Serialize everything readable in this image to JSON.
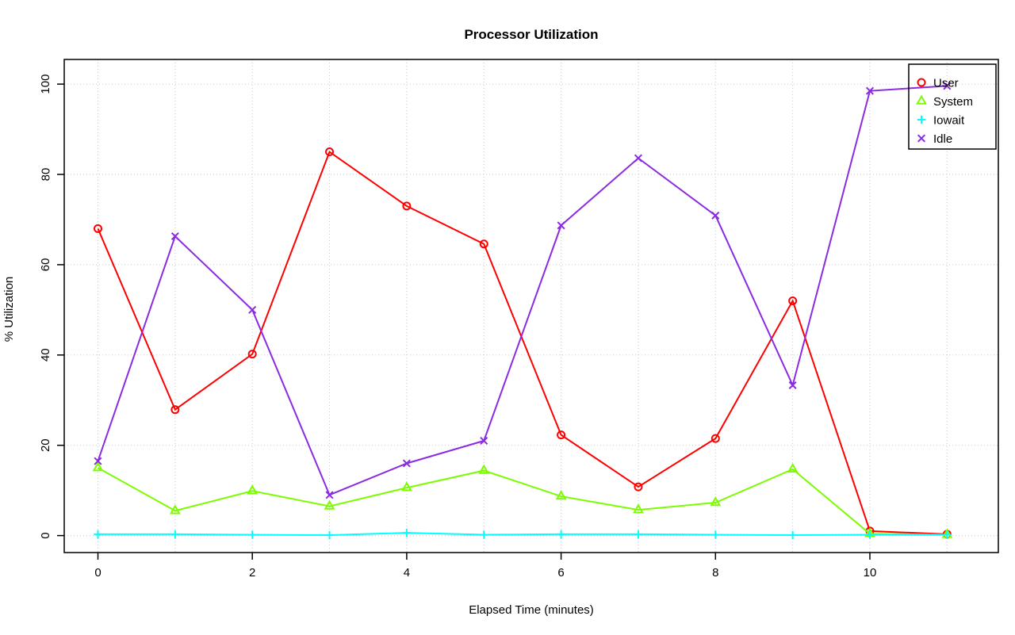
{
  "chart_data": {
    "type": "line",
    "title": "Processor Utilization",
    "xlabel": "Elapsed Time (minutes)",
    "ylabel": "% Utilization",
    "x": [
      0,
      1,
      2,
      3,
      4,
      5,
      6,
      7,
      8,
      9,
      10,
      11
    ],
    "xticks": [
      0,
      2,
      4,
      6,
      8,
      10
    ],
    "yticks": [
      0,
      20,
      40,
      60,
      80,
      100
    ],
    "xlim": [
      -0.45,
      11.65
    ],
    "ylim": [
      0,
      100
    ],
    "grid": true,
    "grid_style": "dotted",
    "grid_color": "#c8c8c8",
    "legend_position": "top-right",
    "series": [
      {
        "name": "User",
        "color": "#ff0000",
        "marker": "circle",
        "values": [
          68.0,
          27.9,
          40.2,
          85.0,
          73.0,
          64.6,
          22.3,
          10.8,
          21.5,
          52.0,
          1.0,
          0.3
        ]
      },
      {
        "name": "System",
        "color": "#7cfc00",
        "marker": "triangle",
        "values": [
          15.0,
          5.5,
          9.9,
          6.5,
          10.6,
          14.4,
          8.7,
          5.7,
          7.3,
          14.7,
          0.4,
          0.2
        ]
      },
      {
        "name": "Iowait",
        "color": "#00ffff",
        "marker": "plus",
        "values": [
          0.3,
          0.3,
          0.2,
          0.1,
          0.6,
          0.2,
          0.3,
          0.3,
          0.2,
          0.1,
          0.2,
          0.2
        ]
      },
      {
        "name": "Idle",
        "color": "#8a2be2",
        "marker": "x",
        "values": [
          16.5,
          66.3,
          50.0,
          9.0,
          16.0,
          21.0,
          68.7,
          83.6,
          70.9,
          33.3,
          98.5,
          99.6
        ]
      }
    ]
  }
}
